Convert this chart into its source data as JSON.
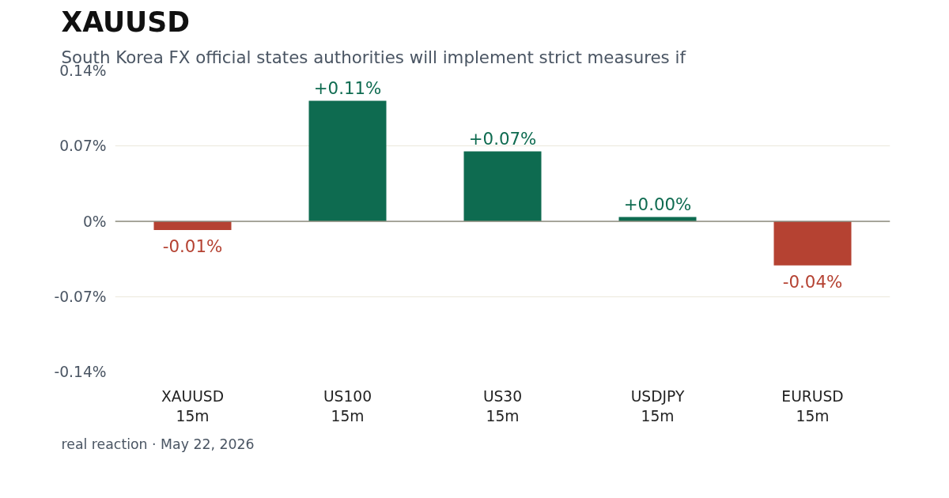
{
  "chart_data": {
    "type": "bar",
    "title": "XAUUSD",
    "subtitle": "South Korea FX official states authorities will implement strict measures if",
    "categories": [
      "XAUUSD\n15m",
      "US100\n15m",
      "US30\n15m",
      "USDJPY\n15m",
      "EURUSD\n15m"
    ],
    "values": [
      -0.008,
      0.112,
      0.065,
      0.004,
      -0.041
    ],
    "colors": [
      "#b54232",
      "#0e6b50",
      "#0e6b50",
      "#0e6b50",
      "#b54232"
    ],
    "value_labels": [
      "-0.01%",
      "+0.11%",
      "+0.07%",
      "+0.00%",
      "-0.04%"
    ],
    "ylim": [
      -0.14,
      0.14
    ],
    "yticks": [
      {
        "value": -0.14,
        "label": "-0.14%"
      },
      {
        "value": -0.07,
        "label": "-0.07%"
      },
      {
        "value": 0,
        "label": "0%"
      },
      {
        "value": 0.07,
        "label": "0.07%"
      },
      {
        "value": 0.14,
        "label": "0.14%"
      }
    ],
    "grid": "y",
    "ref_lines": [
      {
        "axis": "y",
        "value": 0,
        "color": "#8c8c80"
      }
    ],
    "annotations": [
      "real reaction · May 22, 2026"
    ]
  }
}
